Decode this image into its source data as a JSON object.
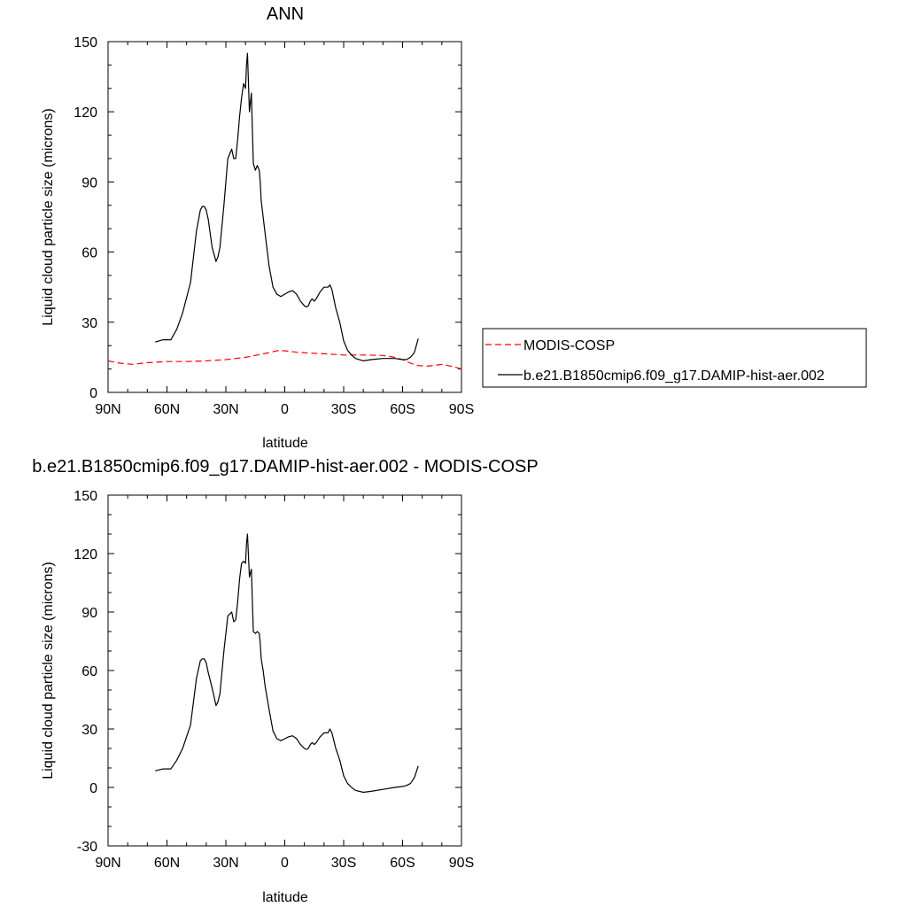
{
  "chart_data": [
    {
      "type": "line",
      "title": "ANN",
      "xlabel": "latitude",
      "ylabel": "Liquid cloud particle size (microns)",
      "xlim": [
        90,
        -90
      ],
      "ylim": [
        0,
        150
      ],
      "x_ticks": [
        90,
        60,
        30,
        0,
        -30,
        -60,
        -90
      ],
      "x_tick_labels": [
        "90N",
        "60N",
        "30N",
        "0",
        "30S",
        "60S",
        "90S"
      ],
      "y_ticks": [
        0,
        30,
        60,
        90,
        120,
        150
      ],
      "y_tick_labels": [
        "0",
        "30",
        "60",
        "90",
        "120",
        "150"
      ],
      "grid": false,
      "legend": "right",
      "series": [
        {
          "name": "MODIS-COSP",
          "color": "#ff0000",
          "dash": "dashed",
          "x": [
            90,
            84,
            78,
            70,
            60,
            50,
            40,
            30,
            20,
            14,
            8,
            4,
            0,
            -6,
            -12,
            -20,
            -30,
            -40,
            -50,
            -56,
            -60,
            -64,
            -68,
            -72,
            -76,
            -80,
            -86,
            -90
          ],
          "y": [
            13.5,
            12.5,
            12,
            12.7,
            13.2,
            13.2,
            13.5,
            14,
            15,
            16,
            17,
            17.8,
            17.8,
            17.2,
            16.8,
            16.5,
            16,
            16,
            15.8,
            15,
            14,
            12.5,
            11.5,
            11.2,
            11.5,
            12,
            11,
            10
          ]
        },
        {
          "name": "b.e21.B1850cmip6.f09_g17.DAMIP-hist-aer.002",
          "color": "#000000",
          "dash": "solid",
          "x": [
            66,
            62,
            58,
            55,
            52,
            48,
            45,
            43,
            42,
            41,
            40,
            39,
            37,
            35,
            34,
            33,
            31,
            29,
            27,
            26,
            25,
            24,
            23,
            22,
            21,
            20,
            19.5,
            19,
            18,
            17,
            16,
            15,
            14,
            13,
            12.5,
            12,
            11,
            10,
            8,
            6,
            4,
            2,
            0,
            -2,
            -4,
            -6,
            -8,
            -10,
            -11,
            -12,
            -13,
            -14,
            -15,
            -16,
            -18,
            -20,
            -22,
            -23,
            -24,
            -25,
            -26,
            -28,
            -30,
            -32,
            -34,
            -36,
            -40,
            -44,
            -50,
            -56,
            -60,
            -62,
            -64,
            -66,
            -67,
            -68
          ],
          "y": [
            21.5,
            22.5,
            22.5,
            27,
            34,
            47,
            69,
            78,
            79.5,
            79.5,
            78,
            74,
            62,
            56,
            58,
            62,
            80,
            100,
            104,
            100,
            100,
            108,
            118,
            126,
            132,
            130,
            140,
            145,
            120,
            128,
            98,
            95,
            97,
            95,
            90,
            82,
            75,
            68,
            54,
            45,
            42,
            41,
            42,
            43,
            43.5,
            42,
            39,
            37,
            36.5,
            37,
            39,
            40,
            39,
            40,
            43,
            45,
            45,
            46,
            44,
            40,
            36,
            30,
            22,
            18,
            16,
            14.5,
            13.5,
            14,
            14.5,
            14.5,
            14,
            14,
            15,
            17,
            20,
            23
          ]
        }
      ]
    },
    {
      "type": "line",
      "title": "b.e21.B1850cmip6.f09_g17.DAMIP-hist-aer.002 - MODIS-COSP",
      "xlabel": "latitude",
      "ylabel": "Liquid cloud particle size (microns)",
      "xlim": [
        90,
        -90
      ],
      "ylim": [
        -30,
        150
      ],
      "x_ticks": [
        90,
        60,
        30,
        0,
        -30,
        -60,
        -90
      ],
      "x_tick_labels": [
        "90N",
        "60N",
        "30N",
        "0",
        "30S",
        "60S",
        "90S"
      ],
      "y_ticks": [
        -30,
        0,
        30,
        60,
        90,
        120,
        150
      ],
      "y_tick_labels": [
        "-30",
        "0",
        "30",
        "60",
        "90",
        "120",
        "150"
      ],
      "grid": false,
      "series": [
        {
          "color": "#000000",
          "dash": "solid",
          "x": [
            66,
            62,
            58,
            55,
            52,
            48,
            45,
            43,
            42,
            41,
            40,
            39,
            37,
            35,
            34,
            33,
            31,
            29,
            27,
            26,
            25,
            24,
            23,
            22,
            21,
            20,
            19.5,
            19,
            18,
            17,
            16,
            15,
            14,
            13,
            12.5,
            12,
            11,
            10,
            8,
            6,
            4,
            2,
            0,
            -2,
            -4,
            -6,
            -8,
            -10,
            -11,
            -12,
            -13,
            -14,
            -15,
            -16,
            -18,
            -20,
            -22,
            -23,
            -24,
            -25,
            -26,
            -28,
            -30,
            -32,
            -34,
            -36,
            -40,
            -44,
            -50,
            -56,
            -60,
            -62,
            -64,
            -66,
            -67,
            -68
          ],
          "y": [
            8.5,
            9.5,
            9.5,
            14,
            20,
            32,
            56,
            65,
            66,
            66,
            64,
            59,
            51,
            42,
            44,
            48,
            70,
            88,
            90,
            85,
            86,
            95,
            107,
            115,
            116,
            115,
            125,
            130,
            108,
            112,
            80,
            79,
            80,
            79,
            74,
            66,
            60,
            52,
            40,
            29,
            25,
            24,
            25,
            26,
            26.5,
            25,
            22,
            20,
            19.5,
            20,
            22,
            23,
            22,
            23,
            26,
            28,
            28,
            30,
            28,
            24,
            20,
            14,
            6,
            2,
            0,
            -1.5,
            -2.5,
            -2,
            -1,
            0,
            0.5,
            1,
            2,
            5,
            8,
            11
          ]
        }
      ]
    }
  ]
}
